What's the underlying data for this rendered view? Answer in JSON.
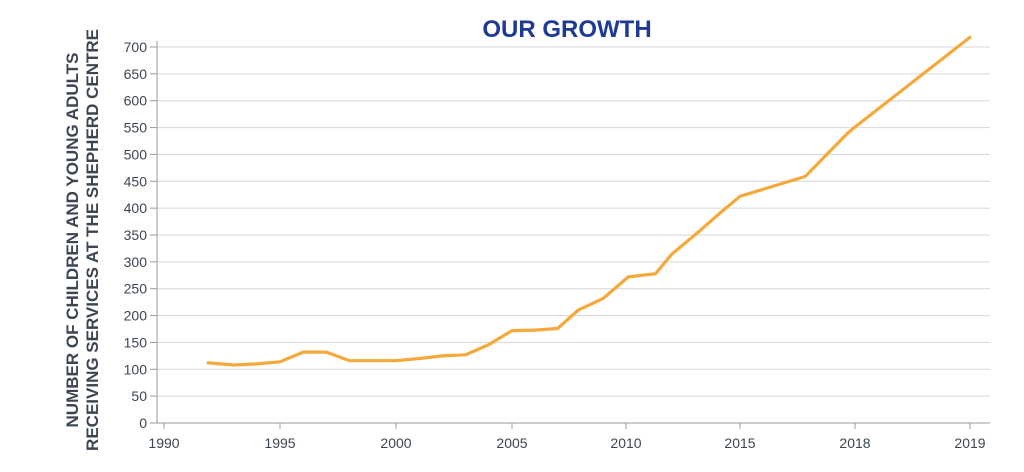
{
  "chart_data": {
    "type": "line",
    "title": "OUR GROWTH",
    "ylabel_lines": [
      "NUMBER OF CHILDREN AND YOUNG ADULTS",
      "RECEIVING SERVICES AT THE SHEPHERD CENTRE"
    ],
    "xlabel": "",
    "x_tick_labels": [
      "1990",
      "1995",
      "2000",
      "2005",
      "2010",
      "2015",
      "2018",
      "2019"
    ],
    "y_ticks": [
      0,
      50,
      100,
      150,
      200,
      250,
      300,
      350,
      400,
      450,
      500,
      550,
      600,
      650,
      700
    ],
    "ylim": [
      0,
      720
    ],
    "grid": "horizontal",
    "line_color": "#f5a93b",
    "title_color": "#1f3a93",
    "series": [
      {
        "x": [
          1991.9,
          1993,
          1994,
          1995,
          1996,
          1997,
          1998,
          1999,
          2000,
          2001,
          2002,
          2003,
          2004,
          2005,
          2006,
          2007,
          2007.9,
          2009,
          2010.1,
          2011.3,
          2012,
          2013.3,
          2014.1,
          2015,
          2016.7,
          2017.8,
          2018,
          2019
        ],
        "values": [
          112,
          108,
          110,
          114,
          132,
          132,
          116,
          116,
          116,
          120,
          125,
          127,
          146,
          172,
          173,
          176,
          210,
          232,
          272,
          278,
          314,
          360,
          390,
          422,
          459,
          539,
          551,
          718
        ]
      }
    ]
  }
}
